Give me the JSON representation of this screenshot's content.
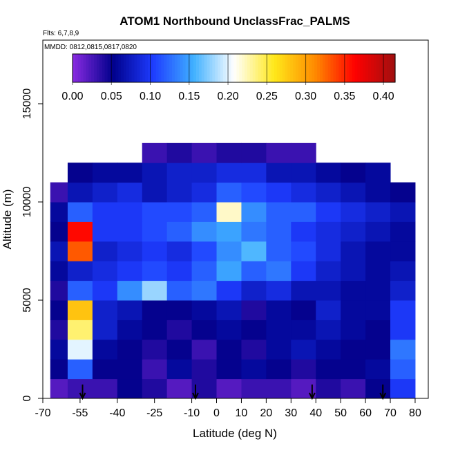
{
  "chart_data": {
    "type": "heatmap",
    "title": "ATOM1 Northbound UnclassFrac_PALMS",
    "subtitle": "Flts: 6,7,8,9",
    "annotation": "MMDD: 0812,0815,0817,0820",
    "x_label": "Latitude (deg N)",
    "y_label": "Altitude (m)",
    "xlim": [
      -70,
      85.3
    ],
    "ylim": [
      0,
      18240
    ],
    "xticks": [
      -70,
      -55,
      -40,
      -25,
      -10,
      0,
      10,
      20,
      30,
      40,
      50,
      60,
      70,
      80
    ],
    "yticks": [
      0,
      5000,
      10000,
      15000
    ],
    "x_edges": [
      -67,
      -60,
      -50,
      -40,
      -30,
      -20,
      -10,
      0,
      10,
      20,
      30,
      40,
      50,
      60,
      70,
      80
    ],
    "y_edges": [
      0,
      1000,
      2000,
      3000,
      4000,
      5000,
      6000,
      7000,
      8000,
      9000,
      10000,
      11000,
      12000,
      13000
    ],
    "values": [
      [
        0.02,
        0.03,
        0.03,
        0.05,
        0.04,
        0.02,
        0.04,
        0.02,
        0.03,
        0.03,
        0.02,
        0.04,
        0.03,
        0.05,
        0.1
      ],
      [
        0.05,
        0.12,
        0.05,
        0.05,
        0.03,
        0.06,
        0.04,
        0.05,
        0.06,
        0.05,
        0.04,
        0.05,
        0.05,
        0.06,
        0.12
      ],
      [
        0.06,
        0.2,
        0.06,
        0.05,
        0.04,
        0.05,
        0.03,
        0.05,
        0.04,
        0.06,
        0.07,
        0.06,
        0.05,
        0.05,
        0.13
      ],
      [
        0.04,
        0.24,
        0.08,
        0.06,
        0.05,
        0.04,
        0.05,
        0.06,
        0.05,
        0.06,
        0.06,
        0.07,
        0.06,
        0.05,
        0.1
      ],
      [
        0.05,
        0.28,
        0.08,
        0.07,
        0.05,
        0.05,
        0.06,
        0.07,
        0.04,
        0.06,
        0.05,
        0.08,
        0.06,
        0.06,
        0.1
      ],
      [
        0.04,
        0.12,
        0.1,
        0.14,
        0.18,
        0.12,
        0.13,
        0.1,
        0.08,
        0.09,
        0.07,
        0.07,
        0.06,
        0.06,
        0.08
      ],
      [
        0.06,
        0.08,
        0.09,
        0.1,
        0.11,
        0.1,
        0.12,
        0.15,
        0.12,
        0.13,
        0.1,
        0.08,
        0.07,
        0.06,
        0.07
      ],
      [
        0.07,
        0.33,
        0.08,
        0.09,
        0.1,
        0.09,
        0.11,
        0.14,
        0.16,
        0.12,
        0.11,
        0.09,
        0.07,
        0.06,
        0.06
      ],
      [
        0.05,
        0.36,
        0.1,
        0.1,
        0.11,
        0.12,
        0.14,
        0.15,
        0.13,
        0.12,
        0.1,
        0.09,
        0.08,
        0.07,
        0.06
      ],
      [
        0.06,
        0.12,
        0.1,
        0.1,
        0.11,
        0.11,
        0.12,
        0.22,
        0.14,
        0.12,
        0.12,
        0.1,
        0.09,
        0.08,
        0.07
      ],
      [
        0.03,
        0.07,
        0.08,
        0.09,
        0.07,
        0.08,
        0.09,
        0.12,
        0.11,
        0.1,
        0.09,
        0.08,
        0.07,
        0.06,
        0.05
      ],
      [
        null,
        0.05,
        0.06,
        0.06,
        0.07,
        0.08,
        0.08,
        0.09,
        0.09,
        0.07,
        0.07,
        0.06,
        0.05,
        0.06,
        null
      ],
      [
        null,
        null,
        null,
        null,
        0.03,
        0.04,
        0.03,
        0.04,
        0.04,
        0.03,
        0.03,
        null,
        null,
        null,
        null
      ]
    ],
    "markers_lat": [
      -54,
      -8.5,
      38.5,
      67
    ],
    "colorbar": {
      "lim": [
        0,
        0.415
      ],
      "ticks": [
        {
          "value": 0,
          "label": "0.00"
        },
        {
          "value": 0.05,
          "label": "0.05"
        },
        {
          "value": 0.1,
          "label": "0.10"
        },
        {
          "value": 0.15,
          "label": "0.15"
        },
        {
          "value": 0.2,
          "label": "0.20"
        },
        {
          "value": 0.25,
          "label": "0.25"
        },
        {
          "value": 0.3,
          "label": "0.30"
        },
        {
          "value": 0.35,
          "label": "0.35"
        },
        {
          "value": 0.4,
          "label": "0.40"
        }
      ],
      "colors": [
        "#8a2be2",
        "#00008b",
        "#1e3cff",
        "#3fb0ff",
        "#ffffff",
        "#ffe81a",
        "#ff8c00",
        "#ff0000",
        "#a01010"
      ]
    }
  }
}
